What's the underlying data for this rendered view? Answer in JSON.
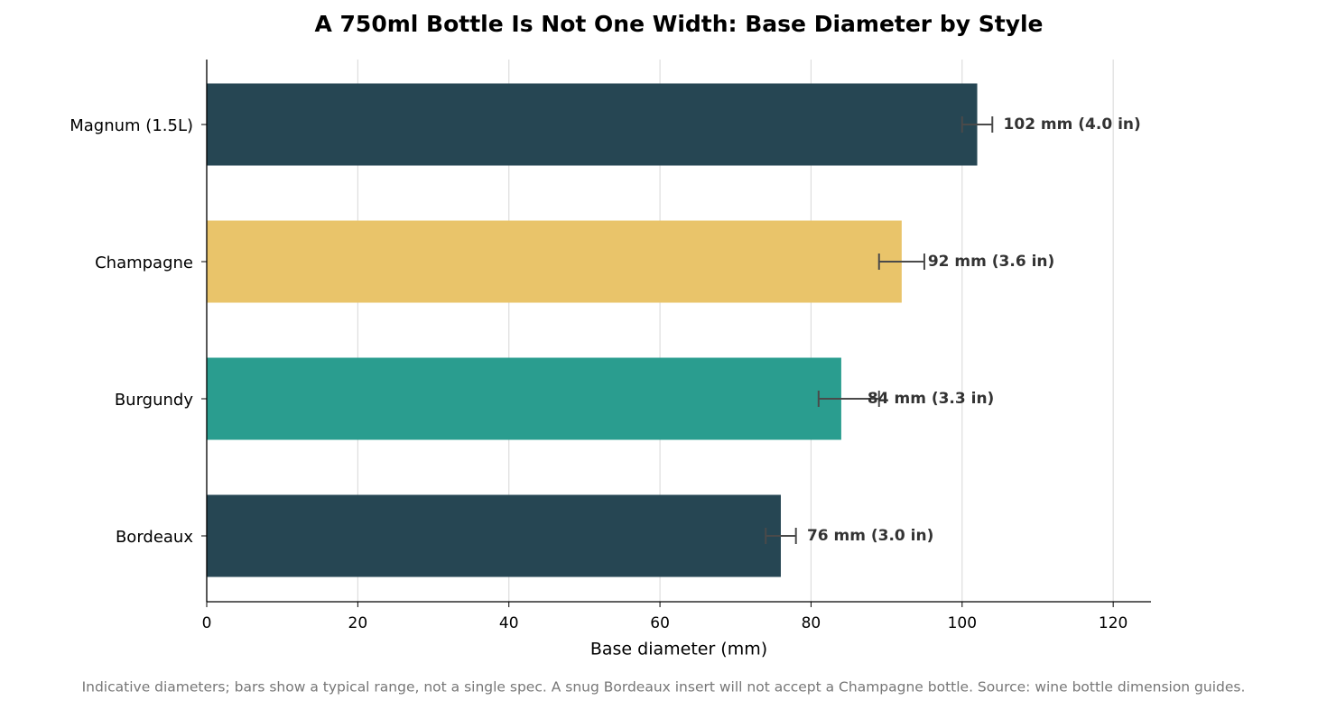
{
  "chart_data": {
    "type": "hbar",
    "title": "A 750ml Bottle Is Not One Width: Base Diameter by Style",
    "x_label": "Base diameter (mm)",
    "footnote": "Indicative diameters; bars show a typical range, not a single spec. A snug Bordeaux insert will not accept a Champagne bottle. Source: wine bottle dimension guides.",
    "categories": [
      "Bordeaux",
      "Burgundy",
      "Champagne",
      "Magnum (1.5L)"
    ],
    "values": [
      76,
      84,
      92,
      102
    ],
    "error_minus": [
      2,
      3,
      3,
      2
    ],
    "error_plus": [
      2,
      5,
      3,
      2
    ],
    "value_labels": [
      "76 mm (3.0 in)",
      "84 mm (3.3 in)",
      "92 mm (3.6 in)",
      "102 mm (4.0 in)"
    ],
    "colors": [
      "#264653",
      "#2a9d8f",
      "#e9c46a",
      "#264653"
    ],
    "xlim": [
      0,
      125
    ],
    "xticks": [
      0,
      20,
      40,
      60,
      80,
      100,
      120
    ],
    "grid": true
  }
}
